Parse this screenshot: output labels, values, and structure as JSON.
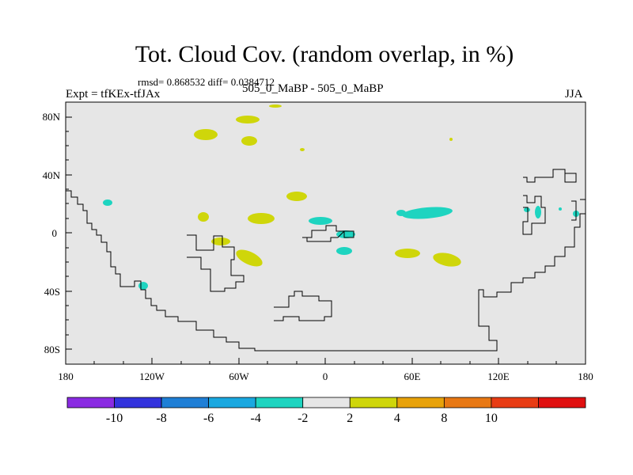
{
  "title": "Tot. Cloud Cov. (random overlap, in %)",
  "stats": "rmsd= 0.868532 diff= 0.0384712",
  "experiment": "Expt = tfKEx-tfJAx",
  "center_label": "505_0_MaBP - 505_0_MaBP",
  "season": "JJA",
  "lat_ticks": [
    "80N",
    "40N",
    "0",
    "40S",
    "80S"
  ],
  "lon_ticks": [
    "180",
    "120W",
    "60W",
    "0",
    "60E",
    "120E",
    "180"
  ],
  "colorbar": {
    "colors": [
      "#8a2be2",
      "#3333dd",
      "#1f7fd6",
      "#1aa8e0",
      "#1ed4c0",
      "#e6e6e6",
      "#cfd60a",
      "#e8a20a",
      "#e87814",
      "#e83c14",
      "#e01010"
    ],
    "labels": [
      "-10",
      "-8",
      "-6",
      "-4",
      "-2",
      "2",
      "4",
      "8",
      "10"
    ]
  },
  "colors": {
    "background": "#e6e6e6",
    "positive": "#cfd60a",
    "negative": "#1ed4c0",
    "coast": "#000000"
  }
}
